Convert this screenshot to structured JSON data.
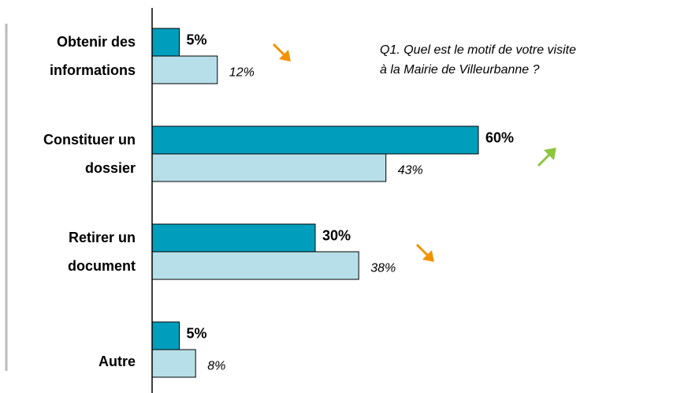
{
  "chart_data": {
    "type": "bar",
    "orientation": "horizontal",
    "title": [
      "Q1. Quel est le motif de votre visite",
      "à la Mairie de Villeurbanne ?"
    ],
    "categories": [
      [
        "Obtenir des",
        "informations"
      ],
      [
        "Constituer un",
        "dossier"
      ],
      [
        "Retirer un",
        "document"
      ],
      [
        "Autre"
      ]
    ],
    "series": [
      {
        "color": "#009ebd",
        "values": [
          5,
          60,
          30,
          5
        ],
        "value_labels": [
          "5%",
          "60%",
          "30%",
          "5%"
        ]
      },
      {
        "color": "#b7dfe9",
        "values": [
          12,
          43,
          38,
          8
        ],
        "value_labels": [
          "12%",
          "43%",
          "38%",
          "8%"
        ]
      }
    ],
    "xlim": [
      0,
      95
    ]
  }
}
